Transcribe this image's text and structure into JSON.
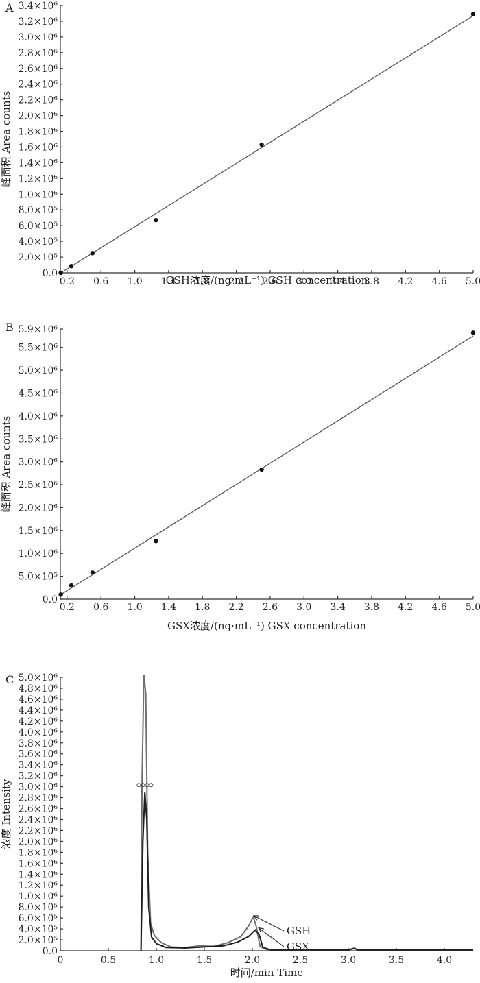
{
  "chart_data": [
    {
      "panel_label": "A",
      "type": "scatter",
      "ylabel": "峰面积 Area counts",
      "xlabel": "GSH浓度/(ng·mL⁻¹)  GSH concentration",
      "x_ticks": [
        "0.2",
        "0.6",
        "1.0",
        "1.4",
        "1.8",
        "2.2",
        "2.6",
        "3.0",
        "3.4",
        "3.8",
        "4.2",
        "4.6",
        "5.0"
      ],
      "y_ticks": [
        {
          "value": 0,
          "label": "0.0"
        },
        {
          "value": 200000,
          "label": "2.0×10⁵"
        },
        {
          "value": 400000,
          "label": "4.0×10⁵"
        },
        {
          "value": 600000,
          "label": "6.0×10⁵"
        },
        {
          "value": 800000,
          "label": "8.0×10⁵"
        },
        {
          "value": 1000000,
          "label": "1.0×10⁶"
        },
        {
          "value": 1200000,
          "label": "1.2×10⁶"
        },
        {
          "value": 1400000,
          "label": "1.4×10⁶"
        },
        {
          "value": 1600000,
          "label": "1.6×10⁶"
        },
        {
          "value": 1800000,
          "label": "1.8×10⁶"
        },
        {
          "value": 2000000,
          "label": "2.0×10⁶"
        },
        {
          "value": 2200000,
          "label": "2.2×10⁶"
        },
        {
          "value": 2400000,
          "label": "2.4×10⁶"
        },
        {
          "value": 2600000,
          "label": "2.6×10⁶"
        },
        {
          "value": 2800000,
          "label": "2.8×10⁶"
        },
        {
          "value": 3000000,
          "label": "3.0×10⁶"
        },
        {
          "value": 3200000,
          "label": "3.2×10⁶"
        },
        {
          "value": 3400000,
          "label": "3.4×10⁶"
        }
      ],
      "xlim": [
        0.12,
        5.0
      ],
      "ylim": [
        0,
        3400000
      ],
      "points": [
        {
          "x": 0.125,
          "y": 0
        },
        {
          "x": 0.25,
          "y": 85000
        },
        {
          "x": 0.5,
          "y": 250000
        },
        {
          "x": 1.25,
          "y": 670000
        },
        {
          "x": 2.5,
          "y": 1630000
        },
        {
          "x": 5.0,
          "y": 3290000
        }
      ],
      "fit_line": [
        {
          "x": 0.125,
          "y": 0
        },
        {
          "x": 5.0,
          "y": 3270000
        }
      ]
    },
    {
      "panel_label": "B",
      "type": "scatter",
      "ylabel": "峰面积 Area counts",
      "xlabel": "GSX浓度/(ng·mL⁻¹)  GSX concentration",
      "x_ticks": [
        "0.2",
        "0.6",
        "1.0",
        "1.4",
        "1.8",
        "2.2",
        "2.6",
        "3.0",
        "3.4",
        "3.8",
        "4.2",
        "4.6",
        "5.0"
      ],
      "y_ticks": [
        {
          "value": 0,
          "label": "0.0"
        },
        {
          "value": 500000,
          "label": "5.0×10⁵"
        },
        {
          "value": 1000000,
          "label": "1.0×10⁶"
        },
        {
          "value": 1500000,
          "label": "1.5×10⁶"
        },
        {
          "value": 2000000,
          "label": "2.0×10⁶"
        },
        {
          "value": 2500000,
          "label": "2.5×10⁶"
        },
        {
          "value": 3000000,
          "label": "3.0×10⁶"
        },
        {
          "value": 3500000,
          "label": "3.5×10⁶"
        },
        {
          "value": 4000000,
          "label": "4.0×10⁶"
        },
        {
          "value": 4500000,
          "label": "4.5×10⁶"
        },
        {
          "value": 5000000,
          "label": "5.0×10⁶"
        },
        {
          "value": 5500000,
          "label": "5.5×10⁶"
        },
        {
          "value": 5900000,
          "label": "5.9×10⁶"
        }
      ],
      "xlim": [
        0.12,
        5.0
      ],
      "ylim": [
        0,
        5900000
      ],
      "points": [
        {
          "x": 0.125,
          "y": 100000
        },
        {
          "x": 0.25,
          "y": 300000
        },
        {
          "x": 0.5,
          "y": 580000
        },
        {
          "x": 1.25,
          "y": 1270000
        },
        {
          "x": 2.5,
          "y": 2830000
        },
        {
          "x": 5.0,
          "y": 5820000
        }
      ],
      "fit_line": [
        {
          "x": 0.125,
          "y": 100000
        },
        {
          "x": 5.0,
          "y": 5750000
        }
      ]
    },
    {
      "panel_label": "C",
      "type": "line",
      "ylabel": "浓度 Intensity",
      "xlabel": "时间/min Time",
      "x_ticks": [
        "0",
        "0.5",
        "1.0",
        "1.5",
        "2.0",
        "2.5",
        "3.0",
        "3.5",
        "4.0"
      ],
      "y_ticks": [
        {
          "value": 0,
          "label": "0.0"
        },
        {
          "value": 200000,
          "label": "2.0×10⁵"
        },
        {
          "value": 400000,
          "label": "4.0×10⁵"
        },
        {
          "value": 600000,
          "label": "6.0×10⁵"
        },
        {
          "value": 800000,
          "label": "8.0×10⁵"
        },
        {
          "value": 1000000,
          "label": "1.0×10⁶"
        },
        {
          "value": 1200000,
          "label": "1.2×10⁶"
        },
        {
          "value": 1400000,
          "label": "1.4×10⁶"
        },
        {
          "value": 1600000,
          "label": "1.6×10⁶"
        },
        {
          "value": 1800000,
          "label": "1.8×10⁶"
        },
        {
          "value": 2000000,
          "label": "2.0×10⁶"
        },
        {
          "value": 2200000,
          "label": "2.2×10⁶"
        },
        {
          "value": 2400000,
          "label": "2.4×10⁶"
        },
        {
          "value": 2600000,
          "label": "2.6×10⁶"
        },
        {
          "value": 2800000,
          "label": "2.8×10⁶"
        },
        {
          "value": 3000000,
          "label": "3.0×10⁶"
        },
        {
          "value": 3200000,
          "label": "3.2×10⁶"
        },
        {
          "value": 3400000,
          "label": "3.4×10⁶"
        },
        {
          "value": 3600000,
          "label": "3.6×10⁶"
        },
        {
          "value": 3800000,
          "label": "3.8×10⁶"
        },
        {
          "value": 4000000,
          "label": "4.0×10⁶"
        },
        {
          "value": 4200000,
          "label": "4.2×10⁶"
        },
        {
          "value": 4400000,
          "label": "4.4×10⁶"
        },
        {
          "value": 4600000,
          "label": "4.6×10⁶"
        },
        {
          "value": 4800000,
          "label": "4.8×10⁶"
        },
        {
          "value": 5000000,
          "label": "5.0×10⁶"
        }
      ],
      "xlim": [
        0,
        4.3
      ],
      "ylim": [
        0,
        5000000
      ],
      "annotations": [
        {
          "text": "GSH",
          "x": 2.0,
          "y": 640000
        },
        {
          "text": "GSX",
          "x": 2.05,
          "y": 420000
        }
      ],
      "series": [
        {
          "name": "GSH",
          "points": [
            [
              0.84,
              0
            ],
            [
              0.85,
              3000000
            ],
            [
              0.87,
              5050000
            ],
            [
              0.89,
              4700000
            ],
            [
              0.91,
              1800000
            ],
            [
              0.94,
              500000
            ],
            [
              0.98,
              280000
            ],
            [
              1.05,
              150000
            ],
            [
              1.15,
              70000
            ],
            [
              1.3,
              60000
            ],
            [
              1.45,
              90000
            ],
            [
              1.6,
              80000
            ],
            [
              1.75,
              150000
            ],
            [
              1.88,
              260000
            ],
            [
              1.96,
              450000
            ],
            [
              2.01,
              620000
            ],
            [
              2.04,
              450000
            ],
            [
              2.08,
              80000
            ],
            [
              2.15,
              20000
            ],
            [
              2.3,
              15000
            ],
            [
              3.0,
              15000
            ],
            [
              3.06,
              50000
            ],
            [
              3.1,
              15000
            ],
            [
              4.3,
              15000
            ]
          ]
        },
        {
          "name": "GSX",
          "points": [
            [
              0.84,
              0
            ],
            [
              0.86,
              2000000
            ],
            [
              0.88,
              2900000
            ],
            [
              0.9,
              2400000
            ],
            [
              0.92,
              800000
            ],
            [
              0.95,
              250000
            ],
            [
              1.0,
              130000
            ],
            [
              1.1,
              60000
            ],
            [
              1.3,
              50000
            ],
            [
              1.5,
              70000
            ],
            [
              1.7,
              90000
            ],
            [
              1.85,
              160000
            ],
            [
              1.96,
              260000
            ],
            [
              2.03,
              380000
            ],
            [
              2.07,
              300000
            ],
            [
              2.11,
              60000
            ],
            [
              2.2,
              15000
            ],
            [
              3.0,
              15000
            ],
            [
              3.06,
              40000
            ],
            [
              3.1,
              15000
            ],
            [
              4.3,
              15000
            ]
          ]
        }
      ]
    }
  ]
}
